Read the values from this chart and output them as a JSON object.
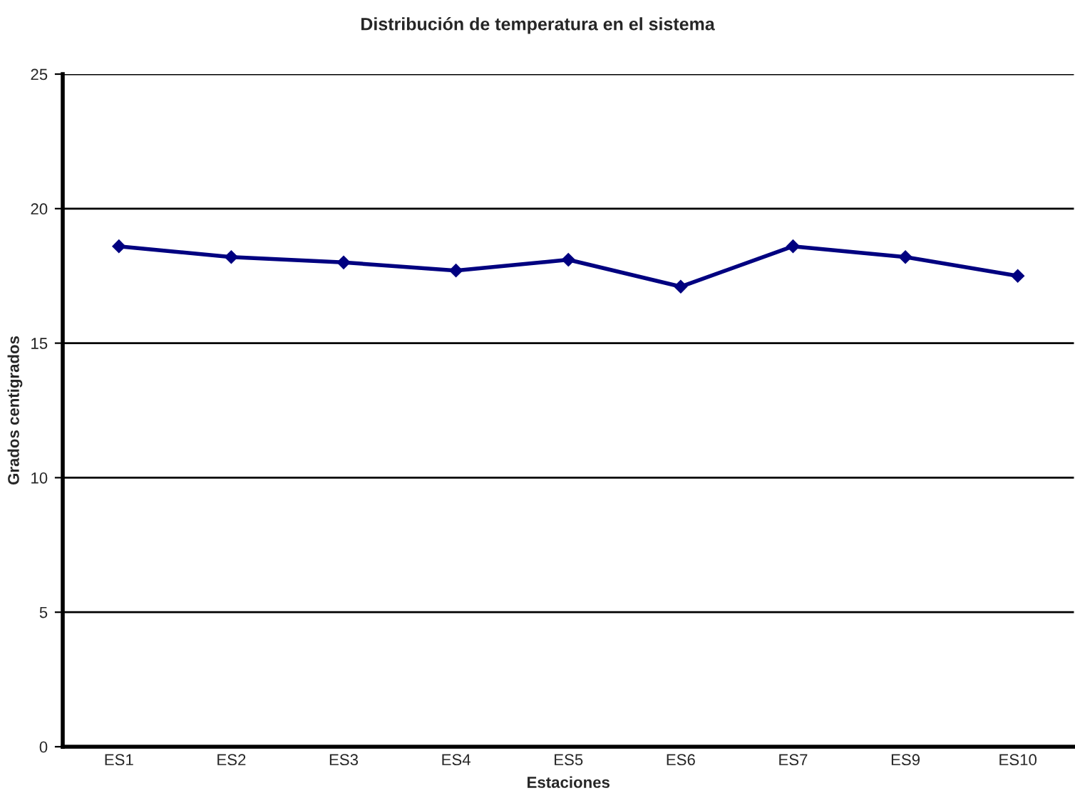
{
  "chart_data": {
    "type": "line",
    "title": "Distribución de temperatura en el sistema",
    "xlabel": "Estaciones",
    "ylabel": "Grados centigrados",
    "categories": [
      "ES1",
      "ES2",
      "ES3",
      "ES4",
      "ES5",
      "ES6",
      "ES7",
      "ES9",
      "ES10"
    ],
    "series": [
      {
        "color": "#000080",
        "values": [
          18.6,
          18.2,
          18.0,
          17.7,
          18.1,
          17.1,
          18.6,
          18.2,
          17.5
        ]
      }
    ],
    "ylim": [
      0,
      25
    ],
    "yticks": [
      0,
      5,
      10,
      15,
      20,
      25
    ],
    "grid": "y",
    "legend": false,
    "marker": "diamond",
    "line_style": "solid"
  }
}
